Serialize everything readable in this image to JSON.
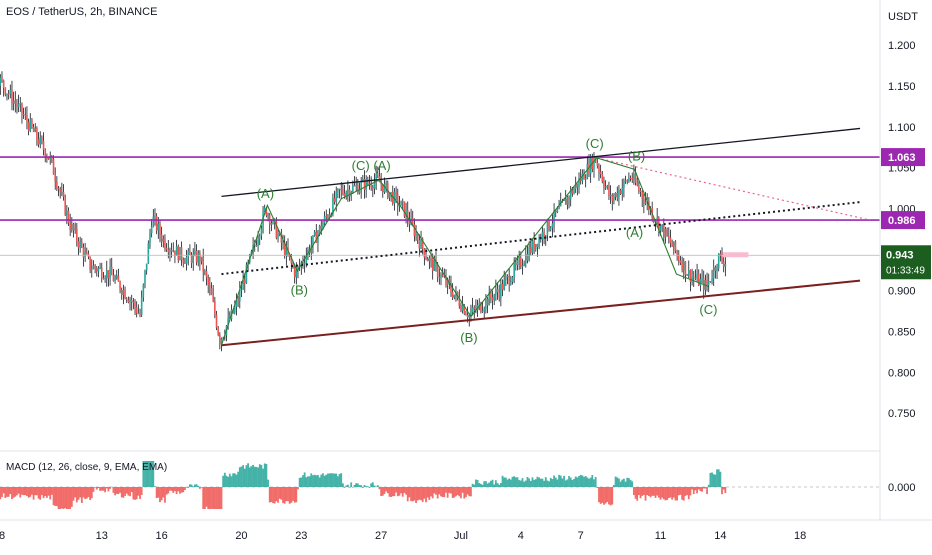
{
  "header": {
    "symbol_title": "EOS / TetherUS, 2h, BINANCE"
  },
  "price_axis": {
    "currency": "USDT"
  },
  "macd": {
    "label": "MACD (12, 26, close, 9, EMA, EMA)",
    "zero_label": "0.000"
  },
  "colors": {
    "up": "#26a69a",
    "down": "#ef5350",
    "candle_wick": "#131722",
    "horizontal_level": "#9c27b0",
    "wave_line": "#2e7d32",
    "wave_label": "#2e7d32",
    "channel_upper": "#131722",
    "channel_lower": "#7b1f1f",
    "current_price_badge": "#1b5e20",
    "pink_dotted": "#f06292"
  },
  "chart_data": {
    "type": "candlestick",
    "title": "EOS / TetherUS, 2h, BINANCE",
    "ylabel": "USDT",
    "ylim": [
      0.705,
      1.255
    ],
    "y_ticks": [
      1.2,
      1.15,
      1.1,
      1.05,
      1.0,
      0.95,
      0.9,
      0.85,
      0.8,
      0.75
    ],
    "x_ticks": [
      {
        "label": "8",
        "day": 8
      },
      {
        "label": "13",
        "day": 13
      },
      {
        "label": "16",
        "day": 16
      },
      {
        "label": "20",
        "day": 20
      },
      {
        "label": "23",
        "day": 23
      },
      {
        "label": "27",
        "day": 27
      },
      {
        "label": "Jul",
        "day": 31
      },
      {
        "label": "4",
        "day": 34
      },
      {
        "label": "7",
        "day": 37
      },
      {
        "label": "11",
        "day": 41
      },
      {
        "label": "14",
        "day": 44
      },
      {
        "label": "18",
        "day": 48
      }
    ],
    "price_path": [
      [
        4.0,
        1.24
      ],
      [
        6.5,
        1.21
      ],
      [
        9.0,
        1.12
      ],
      [
        10.5,
        1.06
      ],
      [
        11.5,
        0.98
      ],
      [
        12.5,
        0.93
      ],
      [
        13.5,
        0.92
      ],
      [
        14.5,
        0.89
      ],
      [
        15.0,
        0.87
      ],
      [
        15.6,
        0.99
      ],
      [
        16.2,
        0.96
      ],
      [
        17.2,
        0.94
      ],
      [
        18.0,
        0.94
      ],
      [
        18.6,
        0.89
      ],
      [
        19.0,
        0.84
      ],
      [
        19.8,
        0.88
      ],
      [
        21.3,
        1.0
      ],
      [
        22.8,
        0.92
      ],
      [
        25.0,
        1.02
      ],
      [
        26.9,
        1.035
      ],
      [
        28.2,
        1.0
      ],
      [
        29.4,
        0.94
      ],
      [
        31.5,
        0.87
      ],
      [
        33.0,
        0.9
      ],
      [
        35.5,
        0.98
      ],
      [
        37.8,
        1.062
      ],
      [
        38.6,
        1.01
      ],
      [
        39.6,
        1.04
      ],
      [
        40.8,
        0.99
      ],
      [
        42.5,
        0.92
      ],
      [
        43.4,
        0.905
      ],
      [
        44.0,
        0.94
      ],
      [
        44.3,
        0.935
      ]
    ],
    "current_price": {
      "value": "0.943",
      "countdown": "01:33:49"
    },
    "horizontal_levels": [
      {
        "value": 1.063,
        "label": "1.063"
      },
      {
        "value": 0.986,
        "label": "0.986"
      }
    ],
    "channel_upper": [
      [
        19.0,
        1.015
      ],
      [
        51.0,
        1.098
      ]
    ],
    "channel_lower": [
      [
        19.0,
        0.833
      ],
      [
        51.0,
        0.912
      ]
    ],
    "channel_mid": [
      [
        19.0,
        0.92
      ],
      [
        51.0,
        1.008
      ]
    ],
    "pink_dotted_line": [
      [
        37.8,
        1.062
      ],
      [
        51.5,
        0.986
      ]
    ],
    "wave_path": [
      [
        19.0,
        0.833
      ],
      [
        21.3,
        1.004
      ],
      [
        22.8,
        0.924
      ],
      [
        25.0,
        1.012
      ],
      [
        26.9,
        1.035
      ],
      [
        28.0,
        1.002
      ],
      [
        31.5,
        0.868
      ],
      [
        37.8,
        1.062
      ],
      [
        39.7,
        1.048
      ],
      [
        41.8,
        0.92
      ],
      [
        43.4,
        0.905
      ]
    ],
    "wave_labels": [
      {
        "text": "(A)",
        "x": 21.2,
        "y": 1.018
      },
      {
        "text": "(B)",
        "x": 22.9,
        "y": 0.9
      },
      {
        "text": "(C) (A)",
        "x": 26.5,
        "y": 1.052
      },
      {
        "text": "(B)",
        "x": 31.4,
        "y": 0.842
      },
      {
        "text": "(C)",
        "x": 37.7,
        "y": 1.079
      },
      {
        "text": "(B)",
        "x": 39.8,
        "y": 1.064
      },
      {
        "text": "(A)",
        "x": 39.7,
        "y": 0.97
      },
      {
        "text": "(C)",
        "x": 43.4,
        "y": 0.876
      }
    ],
    "macd_histogram_note": "histogram fluctuates around 0.000 with green (positive) and red (negative) bars"
  }
}
